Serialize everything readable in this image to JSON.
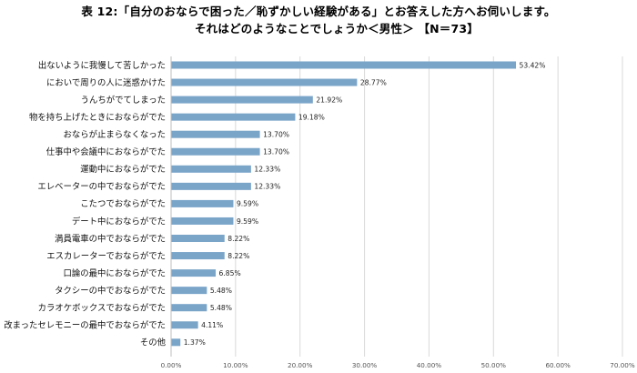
{
  "chart_data": {
    "type": "bar",
    "orientation": "horizontal",
    "title_line1": "表 12:「自分のおならで困った／恥ずかしい経験がある」とお答えした方へお伺いします。",
    "title_line2": "それはどのようなことでしょうか＜男性＞ 【N＝73】",
    "categories": [
      "出ないように我慢して苦しかった",
      "においで周りの人に迷惑かけた",
      "うんちがでてしまった",
      "物を持ち上げたときにおならがでた",
      "おならが止まらなくなった",
      "仕事中や会議中におならがでた",
      "運動中におならがでた",
      "エレベーターの中でおならがでた",
      "こたつでおならがでた",
      "デート中におならがでた",
      "満員電車の中でおならがでた",
      "エスカレーターでおならがでた",
      "口論の最中におならがでた",
      "タクシーの中でおならがでた",
      "カラオケボックスでおならがでた",
      "改まったセレモニーの最中でおならがでた",
      "その他"
    ],
    "values": [
      53.42,
      28.77,
      21.92,
      19.18,
      13.7,
      13.7,
      12.33,
      12.33,
      9.59,
      9.59,
      8.22,
      8.22,
      6.85,
      5.48,
      5.48,
      4.11,
      1.37
    ],
    "value_labels": [
      "53.42%",
      "28.77%",
      "21.92%",
      "19.18%",
      "13.70%",
      "13.70%",
      "12.33%",
      "12.33%",
      "9.59%",
      "9.59%",
      "8.22%",
      "8.22%",
      "6.85%",
      "5.48%",
      "5.48%",
      "4.11%",
      "1.37%"
    ],
    "xlim": [
      0,
      70
    ],
    "xticks": [
      0,
      10,
      20,
      30,
      40,
      50,
      60,
      70
    ],
    "xtick_labels": [
      "0.00%",
      "10.00%",
      "20.00%",
      "30.00%",
      "40.00%",
      "50.00%",
      "60.00%",
      "70.00%"
    ],
    "bar_color": "#7aa5c9",
    "grid_color": "#d9d9d9",
    "grid": true
  }
}
